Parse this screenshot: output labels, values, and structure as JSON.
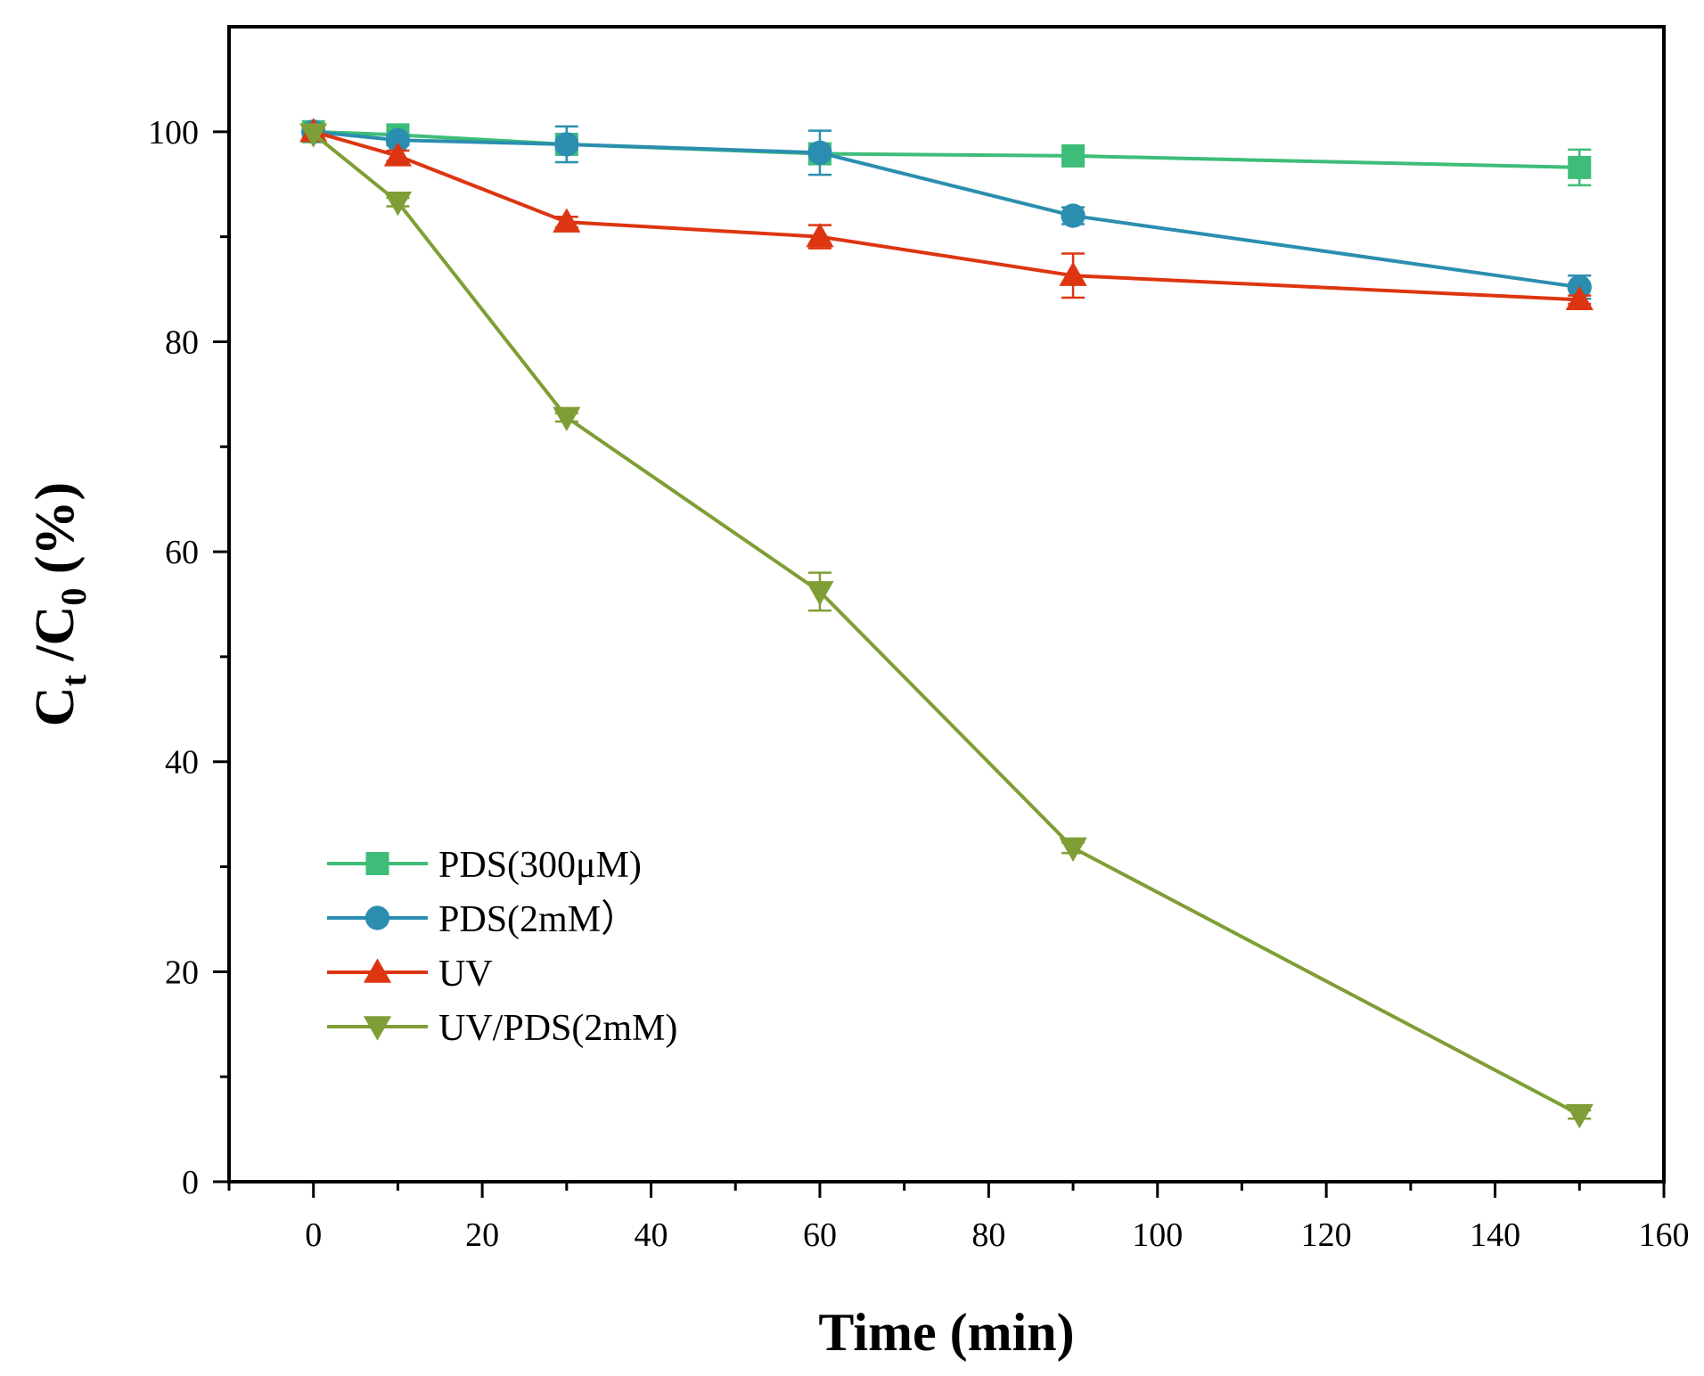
{
  "chart_data": {
    "type": "line",
    "title": "",
    "xlabel": "Time (min)",
    "ylabel": {
      "main": "C",
      "sub_t": "t",
      "slash": " /C",
      "sub_0": "0",
      "unit": " (%)"
    },
    "xlim": [
      -10,
      160
    ],
    "ylim": [
      0,
      110
    ],
    "x_ticks": [
      0,
      20,
      40,
      60,
      80,
      100,
      120,
      140,
      160
    ],
    "y_ticks": [
      0,
      20,
      40,
      60,
      80,
      100
    ],
    "x": [
      0,
      10,
      30,
      60,
      90,
      150
    ],
    "legend_position": "lower-left",
    "series": [
      {
        "name": "PDS(300μM)",
        "marker": "square",
        "color": "#3dbd78",
        "values": [
          100,
          99.7,
          98.8,
          97.9,
          97.7,
          96.6
        ],
        "errors": [
          0.3,
          0.3,
          0.5,
          0.3,
          0.4,
          1.7
        ]
      },
      {
        "name": "PDS(2mM）",
        "marker": "circle",
        "color": "#2b8eb0",
        "values": [
          100,
          99.2,
          98.8,
          98.0,
          92.0,
          85.2
        ],
        "errors": [
          0.3,
          0.4,
          1.7,
          2.1,
          0.8,
          1.1
        ]
      },
      {
        "name": "UV",
        "marker": "triangle-up",
        "color": "#dd3511",
        "values": [
          100,
          97.7,
          91.4,
          90.0,
          86.3,
          84.0
        ],
        "errors": [
          0.3,
          0.5,
          0.5,
          1.1,
          2.1,
          0.4
        ]
      },
      {
        "name": "UV/PDS(2mM)",
        "marker": "triangle-down",
        "color": "#7f9e35",
        "values": [
          99.8,
          93.3,
          72.8,
          56.2,
          31.8,
          6.4
        ],
        "errors": [
          0.3,
          0.4,
          0.4,
          1.8,
          0.5,
          0.4
        ]
      }
    ]
  }
}
